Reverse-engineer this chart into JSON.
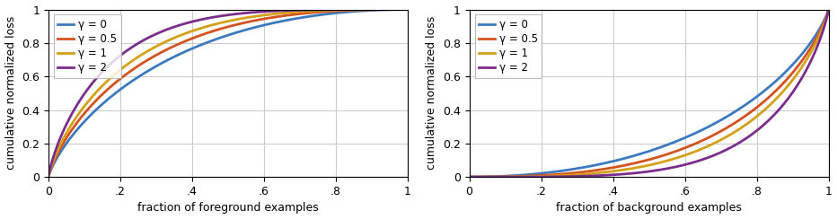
{
  "gammas": [
    0,
    0.5,
    1,
    2
  ],
  "colors": [
    "#3C7ABF",
    "#D4521E",
    "#D4A017",
    "#7B2D8B"
  ],
  "line_width": 2.0,
  "ylabel": "cumulative normalized loss",
  "xlabel_left": "fraction of foreground examples",
  "xlabel_right": "fraction of background examples",
  "legend_labels": [
    "γ = 0",
    "γ = 0.5",
    "γ = 1",
    "γ = 2"
  ],
  "xtick_labels": [
    "0",
    ".2",
    ".4",
    ".6",
    ".8",
    "1"
  ],
  "ytick_labels": [
    "0",
    "0.2",
    "0.4",
    "0.6",
    "0.8",
    "1"
  ],
  "xlim": [
    0,
    1
  ],
  "ylim": [
    0,
    1
  ],
  "grid_color": "#CCCCCC",
  "bg_color": "#FFFFFF",
  "n_points": 5000
}
